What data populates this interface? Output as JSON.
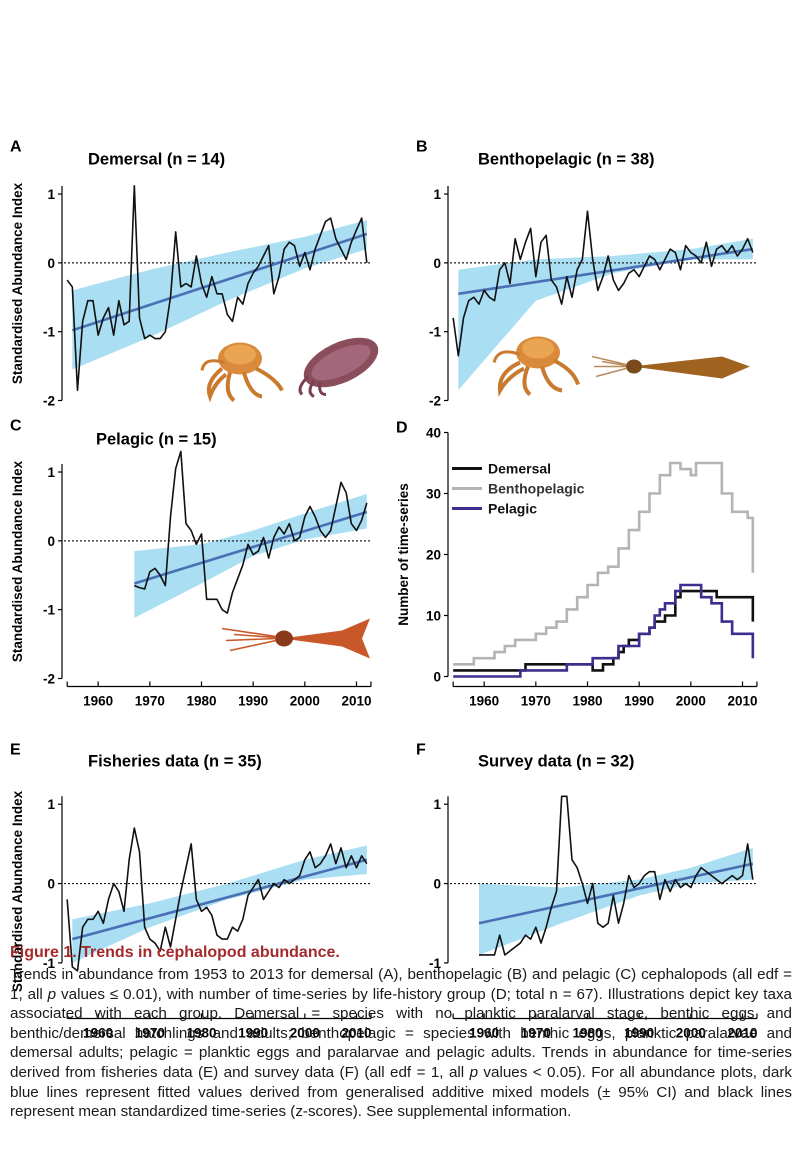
{
  "colors": {
    "fit": "#4a6fb5",
    "ci": "#a9def3",
    "series": "#111111",
    "caption_title": "#a3292b",
    "demersal": "#111111",
    "benthopelagic": "#b4b4b4",
    "pelagic": "#3b2e8e"
  },
  "illustrations": [
    {
      "panel": "A",
      "icons": [
        "octopus-icon",
        "cuttlefish-icon"
      ]
    },
    {
      "panel": "B",
      "icons": [
        "octopus-icon",
        "loligo-squid-icon"
      ]
    },
    {
      "panel": "C",
      "icons": [
        "ommastrephid-squid-icon"
      ]
    }
  ],
  "caption": {
    "title": "Figure 1. Trends in cephalopod abundance.",
    "text_1": "Trends in abundance from 1953 to 2013 for demersal (A), benthopelagic (B) and pelagic (C) cephalopods (all edf = 1, all ",
    "p1": "p",
    "text_2": " values ≤ 0.01), with number of time-series by life-history group (D; total n = 67). Illustrations depict key taxa associated with each group. Demersal = species with no planktic paralarval stage, benthic eggs and benthic/demersal hatchlings and adults; benthopelagic = species with benthic eggs, planktic paralarvae and demersal adults; pelagic = planktic eggs and paralarvae and pelagic adults. Trends in abundance for time-series derived from fisheries data (E) and survey data (F) (all edf = 1, all ",
    "p2": "p",
    "text_3": " values < 0.05). For all abundance plots, dark blue lines represent fitted values derived from generalised additive mixed models (± 95% CI) and black lines represent mean standardized time-series (z-scores). See supplemental information."
  },
  "chart_data": [
    {
      "type": "line",
      "panel": "A",
      "title": "Demersal (n = 14)",
      "xlabel": "",
      "ylabel": "Standardised Abundance Index",
      "xlim": [
        1953,
        2013
      ],
      "ylim": [
        -2,
        1.4
      ],
      "xticks": [],
      "yticks": [
        -2,
        -1,
        0,
        1
      ],
      "yticklabels": [
        "-2",
        "-1",
        "0",
        "1"
      ],
      "zero_line": true,
      "fit": {
        "x": [
          1955,
          2012
        ],
        "y": [
          -0.98,
          0.42
        ]
      },
      "ci": {
        "x": [
          1955,
          1970,
          1985,
          2000,
          2012
        ],
        "upper": [
          -0.4,
          -0.1,
          0.15,
          0.38,
          0.62
        ],
        "lower": [
          -1.55,
          -1.08,
          -0.55,
          -0.08,
          0.2
        ]
      },
      "series": {
        "x": [
          1954,
          1955,
          1956,
          1957,
          1958,
          1959,
          1960,
          1961,
          1962,
          1963,
          1964,
          1965,
          1966,
          1967,
          1968,
          1969,
          1970,
          1971,
          1972,
          1973,
          1974,
          1975,
          1976,
          1977,
          1978,
          1979,
          1980,
          1981,
          1982,
          1983,
          1984,
          1985,
          1986,
          1987,
          1988,
          1989,
          1990,
          1991,
          1992,
          1993,
          1994,
          1995,
          1996,
          1997,
          1998,
          1999,
          2000,
          2001,
          2002,
          2003,
          2004,
          2005,
          2006,
          2007,
          2008,
          2009,
          2010,
          2011,
          2012
        ],
        "y": [
          -0.25,
          -0.35,
          -1.85,
          -0.85,
          -0.55,
          -0.55,
          -1.05,
          -0.8,
          -0.65,
          -1.05,
          -0.55,
          -0.9,
          -0.85,
          1.12,
          -0.8,
          -1.1,
          -1.05,
          -1.1,
          -1.1,
          -1.0,
          -0.5,
          0.45,
          -0.35,
          -0.3,
          -0.35,
          0.1,
          -0.3,
          -0.5,
          -0.2,
          -0.45,
          -0.45,
          -0.75,
          -0.85,
          -0.5,
          -0.6,
          -0.3,
          -0.15,
          -0.05,
          0.1,
          0.25,
          -0.45,
          -0.2,
          0.2,
          0.3,
          0.25,
          -0.05,
          0.15,
          -0.1,
          0.2,
          0.4,
          0.6,
          0.65,
          0.35,
          0.2,
          0.05,
          0.3,
          0.48,
          0.65,
          0.0
        ]
      }
    },
    {
      "type": "line",
      "panel": "B",
      "title": "Benthopelagic (n = 38)",
      "xlabel": "",
      "ylabel": "",
      "xlim": [
        1953,
        2013
      ],
      "ylim": [
        -2,
        1.4
      ],
      "xticks": [],
      "yticks": [
        -2,
        -1,
        0,
        1
      ],
      "yticklabels": [
        "-2",
        "-1",
        "0",
        "1"
      ],
      "zero_line": true,
      "fit": {
        "x": [
          1955,
          2012
        ],
        "y": [
          -0.45,
          0.2
        ]
      },
      "ci": {
        "x": [
          1955,
          1970,
          1985,
          2000,
          2012
        ],
        "upper": [
          -0.1,
          0.05,
          0.1,
          0.2,
          0.35
        ],
        "lower": [
          -1.85,
          -0.55,
          -0.15,
          0.05,
          0.05
        ]
      },
      "series": {
        "x": [
          1954,
          1955,
          1956,
          1957,
          1958,
          1959,
          1960,
          1961,
          1962,
          1963,
          1964,
          1965,
          1966,
          1967,
          1968,
          1969,
          1970,
          1971,
          1972,
          1973,
          1974,
          1975,
          1976,
          1977,
          1978,
          1979,
          1980,
          1981,
          1982,
          1983,
          1984,
          1985,
          1986,
          1987,
          1988,
          1989,
          1990,
          1991,
          1992,
          1993,
          1994,
          1995,
          1996,
          1997,
          1998,
          1999,
          2000,
          2001,
          2002,
          2003,
          2004,
          2005,
          2006,
          2007,
          2008,
          2009,
          2010,
          2011,
          2012
        ],
        "y": [
          -0.8,
          -1.35,
          -0.8,
          -0.55,
          -0.5,
          -0.6,
          -0.4,
          -0.5,
          -0.55,
          -0.1,
          0.0,
          -0.3,
          0.35,
          0.05,
          0.3,
          0.5,
          -0.2,
          0.3,
          0.4,
          -0.25,
          -0.35,
          -0.6,
          -0.2,
          -0.5,
          -0.1,
          0.05,
          0.75,
          0.05,
          -0.4,
          -0.2,
          0.1,
          -0.25,
          -0.4,
          -0.3,
          -0.15,
          -0.1,
          -0.2,
          -0.05,
          0.1,
          0.05,
          -0.1,
          0.05,
          0.2,
          0.15,
          -0.1,
          0.25,
          0.15,
          0.1,
          0.0,
          0.3,
          -0.05,
          0.2,
          0.25,
          0.15,
          0.25,
          0.1,
          0.2,
          0.35,
          0.15
        ]
      }
    },
    {
      "type": "line",
      "panel": "C",
      "title": "Pelagic (n = 15)",
      "xlabel": "",
      "ylabel": "Standardised Abundance Index",
      "xlim": [
        1953,
        2013
      ],
      "ylim": [
        -2,
        1.4
      ],
      "xticks": [
        1960,
        1970,
        1980,
        1990,
        2000,
        2010
      ],
      "yticks": [
        -2,
        -1,
        0,
        1
      ],
      "yticklabels": [
        "-2",
        "-1",
        "0",
        "1"
      ],
      "zero_line": true,
      "fit": {
        "x": [
          1967,
          2012
        ],
        "y": [
          -0.62,
          0.42
        ]
      },
      "ci": {
        "x": [
          1967,
          1980,
          1990,
          2000,
          2012
        ],
        "upper": [
          -0.15,
          -0.05,
          0.15,
          0.4,
          0.68
        ],
        "lower": [
          -1.12,
          -0.62,
          -0.22,
          0.02,
          0.18
        ]
      },
      "series": {
        "x": [
          1967,
          1968,
          1969,
          1970,
          1971,
          1972,
          1973,
          1974,
          1975,
          1976,
          1977,
          1978,
          1979,
          1980,
          1981,
          1982,
          1983,
          1984,
          1985,
          1986,
          1987,
          1988,
          1989,
          1990,
          1991,
          1992,
          1993,
          1994,
          1995,
          1996,
          1997,
          1998,
          1999,
          2000,
          2001,
          2002,
          2003,
          2004,
          2005,
          2006,
          2007,
          2008,
          2009,
          2010,
          2011,
          2012
        ],
        "y": [
          -0.65,
          -0.68,
          -0.7,
          -0.45,
          -0.4,
          -0.5,
          -0.65,
          0.35,
          1.05,
          1.3,
          0.25,
          0.15,
          -0.05,
          0.1,
          -0.85,
          -0.85,
          -0.85,
          -1.0,
          -1.05,
          -0.75,
          -0.55,
          -0.35,
          -0.05,
          -0.2,
          -0.15,
          0.05,
          -0.25,
          0.05,
          0.2,
          0.1,
          0.25,
          0.0,
          0.05,
          0.35,
          0.5,
          0.35,
          0.15,
          0.05,
          0.15,
          0.5,
          0.85,
          0.7,
          0.25,
          0.15,
          0.3,
          0.55
        ]
      }
    },
    {
      "type": "line",
      "panel": "D",
      "title": "",
      "xlabel": "",
      "ylabel": "Number of time-series",
      "xlim": [
        1953,
        2013
      ],
      "ylim": [
        0,
        40
      ],
      "xticks": [
        1960,
        1970,
        1980,
        1990,
        2000,
        2010
      ],
      "yticks": [
        0,
        10,
        20,
        30,
        40
      ],
      "yticklabels": [
        "0",
        "10",
        "20",
        "30",
        "40"
      ],
      "legend": "top-left",
      "series": [
        {
          "name": "Demersal",
          "color": "#111111",
          "x": [
            1954,
            1967,
            1968,
            1980,
            1981,
            1983,
            1985,
            1986,
            1987,
            1988,
            1990,
            1992,
            1993,
            1995,
            1997,
            1998,
            2004,
            2005,
            2011,
            2012
          ],
          "y": [
            1,
            1,
            2,
            2,
            1,
            2,
            3,
            4,
            5,
            6,
            7,
            8,
            9,
            10,
            13,
            14,
            14,
            13,
            13,
            9
          ]
        },
        {
          "name": "Benthopelagic",
          "color": "#b4b4b4",
          "x": [
            1954,
            1957,
            1958,
            1961,
            1962,
            1964,
            1966,
            1968,
            1970,
            1972,
            1974,
            1976,
            1978,
            1980,
            1982,
            1984,
            1986,
            1988,
            1990,
            1992,
            1994,
            1996,
            1998,
            2000,
            2001,
            2003,
            2006,
            2008,
            2010,
            2011,
            2012
          ],
          "y": [
            2,
            2,
            3,
            3,
            4,
            5,
            6,
            6,
            7,
            8,
            9,
            11,
            13,
            15,
            17,
            18,
            21,
            24,
            27,
            30,
            33,
            35,
            34,
            33,
            35,
            35,
            30,
            27,
            27,
            26,
            17
          ]
        },
        {
          "name": "Pelagic",
          "color": "#3b2e8e",
          "x": [
            1954,
            1966,
            1967,
            1975,
            1976,
            1980,
            1981,
            1985,
            1986,
            1989,
            1990,
            1992,
            1993,
            1994,
            1995,
            1996,
            1997,
            1998,
            2001,
            2002,
            2004,
            2006,
            2008,
            2011,
            2012
          ],
          "y": [
            0,
            0,
            1,
            1,
            2,
            2,
            3,
            3,
            5,
            5,
            7,
            8,
            10,
            11,
            12,
            12,
            14,
            15,
            15,
            13,
            12,
            9,
            7,
            7,
            3
          ]
        }
      ]
    },
    {
      "type": "line",
      "panel": "E",
      "title": "Fisheries data (n = 35)",
      "xlabel": "",
      "ylabel": "Standardised Abundance Index",
      "xlim": [
        1953,
        2013
      ],
      "ylim": [
        -1.6,
        1.4
      ],
      "xticks": [
        1960,
        1970,
        1980,
        1990,
        2000,
        2010
      ],
      "yticks": [
        -1,
        0,
        1
      ],
      "yticklabels": [
        "-1",
        "0",
        "1"
      ],
      "zero_line": true,
      "fit": {
        "x": [
          1955,
          2012
        ],
        "y": [
          -0.7,
          0.3
        ]
      },
      "ci": {
        "x": [
          1955,
          1970,
          1985,
          2000,
          2012
        ],
        "upper": [
          -0.45,
          -0.25,
          0.0,
          0.3,
          0.48
        ],
        "lower": [
          -1.0,
          -0.55,
          -0.2,
          0.05,
          0.12
        ]
      },
      "series": {
        "x": [
          1954,
          1955,
          1956,
          1957,
          1958,
          1959,
          1960,
          1961,
          1962,
          1963,
          1964,
          1965,
          1966,
          1967,
          1968,
          1969,
          1970,
          1971,
          1972,
          1973,
          1974,
          1975,
          1976,
          1977,
          1978,
          1979,
          1980,
          1981,
          1982,
          1983,
          1984,
          1985,
          1986,
          1987,
          1988,
          1989,
          1990,
          1991,
          1992,
          1993,
          1994,
          1995,
          1996,
          1997,
          1998,
          1999,
          2000,
          2001,
          2002,
          2003,
          2004,
          2005,
          2006,
          2007,
          2008,
          2009,
          2010,
          2011,
          2012
        ],
        "y": [
          -0.2,
          -1.05,
          -1.1,
          -0.55,
          -0.45,
          -0.45,
          -0.35,
          -0.5,
          -0.2,
          0.0,
          -0.1,
          -0.35,
          0.3,
          0.7,
          0.4,
          -0.55,
          -0.7,
          -0.75,
          -0.85,
          -0.55,
          -0.8,
          -0.45,
          -0.1,
          0.2,
          0.5,
          -0.2,
          -0.35,
          -0.3,
          -0.4,
          -0.65,
          -0.7,
          -0.7,
          -0.55,
          -0.6,
          -0.45,
          -0.15,
          -0.05,
          0.05,
          -0.2,
          -0.1,
          0.0,
          -0.05,
          0.05,
          0.0,
          0.05,
          0.1,
          0.3,
          0.4,
          0.2,
          0.25,
          0.35,
          0.5,
          0.25,
          0.45,
          0.2,
          0.35,
          0.2,
          0.35,
          0.25
        ]
      }
    },
    {
      "type": "line",
      "panel": "F",
      "title": "Survey data (n = 32)",
      "xlabel": "",
      "ylabel": "",
      "xlim": [
        1953,
        2013
      ],
      "ylim": [
        -1.6,
        1.4
      ],
      "xticks": [
        1960,
        1970,
        1980,
        1990,
        2000,
        2010
      ],
      "yticks": [
        -1,
        0,
        1
      ],
      "yticklabels": [
        "-1",
        "0",
        "1"
      ],
      "zero_line": true,
      "fit": {
        "x": [
          1959,
          2012
        ],
        "y": [
          -0.5,
          0.25
        ]
      },
      "ci": {
        "x": [
          1959,
          1975,
          1990,
          2000,
          2012
        ],
        "upper": [
          0.0,
          -0.05,
          0.05,
          0.2,
          0.45
        ],
        "lower": [
          -0.9,
          -0.5,
          -0.15,
          0.0,
          0.05
        ]
      },
      "series": {
        "x": [
          1959,
          1960,
          1961,
          1962,
          1963,
          1964,
          1965,
          1966,
          1967,
          1968,
          1969,
          1970,
          1971,
          1972,
          1973,
          1974,
          1975,
          1976,
          1977,
          1978,
          1979,
          1980,
          1981,
          1982,
          1983,
          1984,
          1985,
          1986,
          1987,
          1988,
          1989,
          1990,
          1991,
          1992,
          1993,
          1994,
          1995,
          1996,
          1997,
          1998,
          1999,
          2000,
          2001,
          2002,
          2003,
          2004,
          2005,
          2006,
          2007,
          2008,
          2009,
          2010,
          2011,
          2012
        ],
        "y": [
          -0.9,
          -0.9,
          -0.9,
          -0.9,
          -0.65,
          -0.9,
          -0.85,
          -0.8,
          -0.75,
          -0.65,
          -0.7,
          -0.55,
          -0.75,
          -0.55,
          -0.3,
          -0.1,
          1.1,
          1.1,
          0.3,
          0.2,
          0.0,
          -0.25,
          0.0,
          -0.5,
          -0.55,
          -0.5,
          -0.15,
          -0.5,
          -0.25,
          0.1,
          -0.05,
          0.0,
          0.1,
          0.15,
          0.15,
          -0.2,
          0.05,
          -0.1,
          0.05,
          -0.05,
          0.0,
          -0.05,
          0.1,
          0.2,
          0.15,
          0.1,
          0.05,
          0.0,
          0.05,
          0.1,
          0.05,
          0.1,
          0.5,
          0.05
        ]
      }
    }
  ]
}
